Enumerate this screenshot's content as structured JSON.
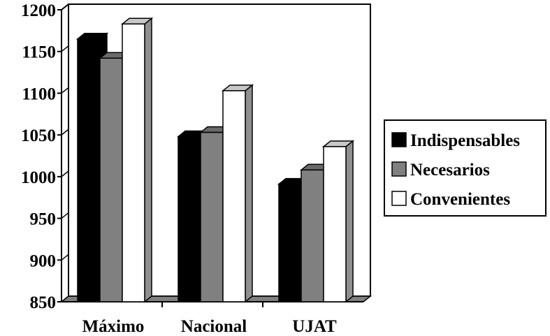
{
  "chart_data": {
    "type": "bar",
    "title": "",
    "xlabel": "",
    "ylabel": "",
    "categories": [
      "Máximo",
      "Nacional",
      "UJAT"
    ],
    "series": [
      {
        "name": "Indispensables",
        "values": [
          1165,
          1048,
          991
        ],
        "color": "#000000"
      },
      {
        "name": "Necesarios",
        "values": [
          1142,
          1053,
          1008
        ],
        "color": "#808080"
      },
      {
        "name": "Convenientes",
        "values": [
          1183,
          1103,
          1036
        ],
        "color": "#ffffff"
      }
    ],
    "ylim": [
      850,
      1200
    ],
    "yticks": [
      "850",
      "900",
      "950",
      "1000",
      "1050",
      "1100",
      "1150",
      "1200"
    ],
    "grid": true,
    "legend": "right",
    "style": "3d-clustered-columns"
  }
}
